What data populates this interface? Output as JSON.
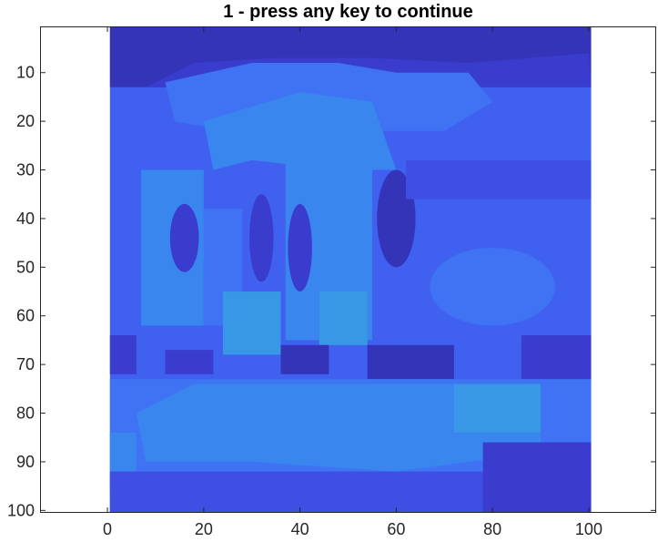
{
  "chart_data": {
    "type": "heatmap",
    "title": "1 - press any key to continue",
    "xlabel": "",
    "ylabel": "",
    "xlim": [
      -14,
      114
    ],
    "ylim": [
      0.5,
      100.5
    ],
    "y_direction": "reversed",
    "grid": false,
    "legend": "none",
    "x_ticks": [
      0,
      20,
      40,
      60,
      80,
      100
    ],
    "y_ticks": [
      10,
      20,
      30,
      40,
      50,
      60,
      70,
      80,
      90,
      100
    ],
    "image_extent": {
      "x": [
        0.5,
        100.5
      ],
      "y": [
        0.5,
        100.5
      ]
    },
    "colors": {
      "darkest": "#2c2c9e",
      "dark": "#3434b8",
      "deep": "#3a3ccd",
      "mid": "#3f4fe4",
      "base": "#4060f0",
      "light": "#3f73f3",
      "lighter": "#3a86ef",
      "cyan": "#3898e6"
    },
    "regions": [
      {
        "kind": "rect",
        "x": [
          0.5,
          100.5
        ],
        "y": [
          0.5,
          100.5
        ],
        "color": "base"
      },
      {
        "kind": "rect",
        "x": [
          0.5,
          100.5
        ],
        "y": [
          0.5,
          13
        ],
        "color": "dark"
      },
      {
        "kind": "poly",
        "points": [
          [
            8,
            13
          ],
          [
            18,
            8
          ],
          [
            35,
            7
          ],
          [
            55,
            7
          ],
          [
            75,
            8
          ],
          [
            100,
            6
          ],
          [
            100.5,
            13
          ],
          [
            0.5,
            13
          ]
        ],
        "color": "deep"
      },
      {
        "kind": "poly",
        "points": [
          [
            12,
            12
          ],
          [
            30,
            8
          ],
          [
            48,
            8
          ],
          [
            60,
            10
          ],
          [
            75,
            10
          ],
          [
            80,
            16
          ],
          [
            70,
            22
          ],
          [
            55,
            22
          ],
          [
            40,
            20
          ],
          [
            25,
            22
          ],
          [
            14,
            20
          ]
        ],
        "color": "light"
      },
      {
        "kind": "poly",
        "points": [
          [
            20,
            20
          ],
          [
            40,
            14
          ],
          [
            55,
            16
          ],
          [
            60,
            30
          ],
          [
            48,
            30
          ],
          [
            30,
            28
          ],
          [
            22,
            30
          ]
        ],
        "color": "lighter"
      },
      {
        "kind": "rect",
        "x": [
          7,
          20
        ],
        "y": [
          30,
          62
        ],
        "color": "lighter"
      },
      {
        "kind": "rect",
        "x": [
          20,
          28
        ],
        "y": [
          38,
          62
        ],
        "color": "light"
      },
      {
        "kind": "rect",
        "x": [
          37,
          55
        ],
        "y": [
          28,
          65
        ],
        "color": "lighter"
      },
      {
        "kind": "rect",
        "x": [
          24,
          36
        ],
        "y": [
          55,
          68
        ],
        "color": "cyan"
      },
      {
        "kind": "rect",
        "x": [
          44,
          54
        ],
        "y": [
          55,
          66
        ],
        "color": "cyan"
      },
      {
        "kind": "ellipse",
        "cx": 16,
        "cy": 44,
        "rx": 3,
        "ry": 7,
        "color": "deep"
      },
      {
        "kind": "ellipse",
        "cx": 32,
        "cy": 44,
        "rx": 2.5,
        "ry": 9,
        "color": "deep"
      },
      {
        "kind": "ellipse",
        "cx": 40,
        "cy": 46,
        "rx": 2.5,
        "ry": 9,
        "color": "deep"
      },
      {
        "kind": "ellipse",
        "cx": 60,
        "cy": 40,
        "rx": 4,
        "ry": 10,
        "color": "dark"
      },
      {
        "kind": "rect",
        "x": [
          62,
          100.5
        ],
        "y": [
          28,
          36
        ],
        "color": "mid"
      },
      {
        "kind": "rect",
        "x": [
          70,
          100.5
        ],
        "y": [
          44,
          66
        ],
        "color": "base"
      },
      {
        "kind": "ellipse",
        "cx": 80,
        "cy": 54,
        "rx": 13,
        "ry": 8,
        "color": "light"
      },
      {
        "kind": "rect",
        "x": [
          0.5,
          6
        ],
        "y": [
          64,
          72
        ],
        "color": "deep"
      },
      {
        "kind": "rect",
        "x": [
          12,
          22
        ],
        "y": [
          67,
          72
        ],
        "color": "deep"
      },
      {
        "kind": "rect",
        "x": [
          36,
          46
        ],
        "y": [
          66,
          72
        ],
        "color": "dark"
      },
      {
        "kind": "rect",
        "x": [
          54,
          72
        ],
        "y": [
          66,
          73
        ],
        "color": "dark"
      },
      {
        "kind": "rect",
        "x": [
          86,
          100.5
        ],
        "y": [
          64,
          74
        ],
        "color": "deep"
      },
      {
        "kind": "rect",
        "x": [
          0.5,
          100.5
        ],
        "y": [
          73,
          100.5
        ],
        "color": "light"
      },
      {
        "kind": "poly",
        "points": [
          [
            6,
            80
          ],
          [
            18,
            74
          ],
          [
            40,
            74
          ],
          [
            60,
            74
          ],
          [
            90,
            74
          ],
          [
            90,
            88
          ],
          [
            60,
            92
          ],
          [
            30,
            90
          ],
          [
            8,
            90
          ]
        ],
        "color": "lighter"
      },
      {
        "kind": "rect",
        "x": [
          72,
          90
        ],
        "y": [
          74,
          84
        ],
        "color": "cyan"
      },
      {
        "kind": "rect",
        "x": [
          0.5,
          6
        ],
        "y": [
          84,
          96
        ],
        "color": "lighter"
      },
      {
        "kind": "rect",
        "x": [
          0.5,
          100.5
        ],
        "y": [
          92,
          100.5
        ],
        "color": "mid"
      },
      {
        "kind": "rect",
        "x": [
          78,
          100.5
        ],
        "y": [
          86,
          100.5
        ],
        "color": "deep"
      }
    ]
  }
}
